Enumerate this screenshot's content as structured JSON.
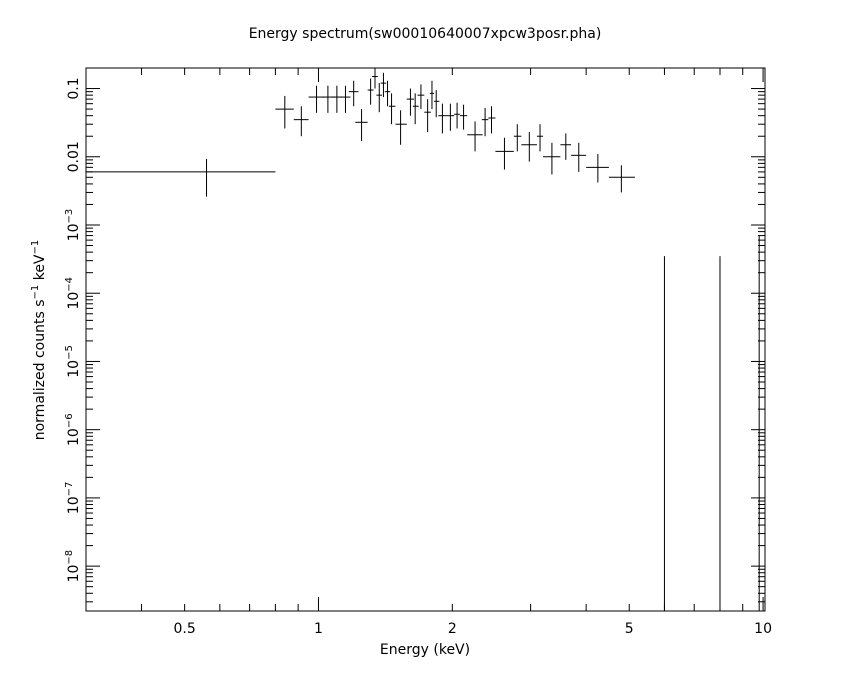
{
  "chart_data": {
    "type": "scatter",
    "title": "Energy spectrum(sw00010640007xpcw3posr.pha)",
    "xlabel": "Energy (keV)",
    "ylabel": {
      "text": "normalized counts s",
      "sup1": "−1",
      "mid": " keV",
      "sup2": "−1"
    },
    "xscale": "log",
    "yscale": "log",
    "xlim": [
      0.3,
      10.1
    ],
    "ylim": [
      2.2e-09,
      0.2
    ],
    "x_ticks": [
      {
        "value": 0.5,
        "label": "0.5"
      },
      {
        "value": 1,
        "label": "1"
      },
      {
        "value": 2,
        "label": "2"
      },
      {
        "value": 5,
        "label": "5"
      },
      {
        "value": 10,
        "label": "10"
      }
    ],
    "y_ticks": [
      {
        "value": 0.1,
        "label": "0.1",
        "exp": ""
      },
      {
        "value": 0.01,
        "label": "0.01",
        "exp": ""
      },
      {
        "value": 0.001,
        "label": "10",
        "exp": "−3"
      },
      {
        "value": 0.0001,
        "label": "10",
        "exp": "−4"
      },
      {
        "value": 1e-05,
        "label": "10",
        "exp": "−5"
      },
      {
        "value": 1e-06,
        "label": "10",
        "exp": "−6"
      },
      {
        "value": 1e-07,
        "label": "10",
        "exp": "−7"
      },
      {
        "value": 1e-08,
        "label": "10",
        "exp": "−8"
      }
    ],
    "series": [
      {
        "style": "crosses",
        "points": [
          {
            "x": 0.56,
            "y": 0.006,
            "xlo": 0.3,
            "xhi": 0.8,
            "ylo": 0.0026,
            "yhi": 0.0093
          },
          {
            "x": 0.84,
            "y": 0.05,
            "xlo": 0.8,
            "xhi": 0.88,
            "ylo": 0.026,
            "yhi": 0.078
          },
          {
            "x": 0.915,
            "y": 0.035,
            "xlo": 0.88,
            "xhi": 0.95,
            "ylo": 0.02,
            "yhi": 0.055
          },
          {
            "x": 0.99,
            "y": 0.075,
            "xlo": 0.95,
            "xhi": 1.03,
            "ylo": 0.044,
            "yhi": 0.11
          },
          {
            "x": 1.05,
            "y": 0.075,
            "xlo": 1.02,
            "xhi": 1.09,
            "ylo": 0.044,
            "yhi": 0.11
          },
          {
            "x": 1.1,
            "y": 0.075,
            "xlo": 1.07,
            "xhi": 1.13,
            "ylo": 0.044,
            "yhi": 0.11
          },
          {
            "x": 1.15,
            "y": 0.075,
            "xlo": 1.12,
            "xhi": 1.18,
            "ylo": 0.044,
            "yhi": 0.11
          },
          {
            "x": 1.2,
            "y": 0.09,
            "xlo": 1.17,
            "xhi": 1.23,
            "ylo": 0.055,
            "yhi": 0.13
          },
          {
            "x": 1.25,
            "y": 0.032,
            "xlo": 1.21,
            "xhi": 1.29,
            "ylo": 0.017,
            "yhi": 0.05
          },
          {
            "x": 1.31,
            "y": 0.095,
            "xlo": 1.29,
            "xhi": 1.33,
            "ylo": 0.058,
            "yhi": 0.14
          },
          {
            "x": 1.34,
            "y": 0.15,
            "xlo": 1.32,
            "xhi": 1.36,
            "ylo": 0.1,
            "yhi": 0.2
          },
          {
            "x": 1.37,
            "y": 0.08,
            "xlo": 1.35,
            "xhi": 1.39,
            "ylo": 0.045,
            "yhi": 0.12
          },
          {
            "x": 1.4,
            "y": 0.12,
            "xlo": 1.38,
            "xhi": 1.42,
            "ylo": 0.075,
            "yhi": 0.17
          },
          {
            "x": 1.43,
            "y": 0.09,
            "xlo": 1.41,
            "xhi": 1.45,
            "ylo": 0.055,
            "yhi": 0.13
          },
          {
            "x": 1.46,
            "y": 0.055,
            "xlo": 1.44,
            "xhi": 1.49,
            "ylo": 0.03,
            "yhi": 0.085
          },
          {
            "x": 1.53,
            "y": 0.03,
            "xlo": 1.49,
            "xhi": 1.58,
            "ylo": 0.015,
            "yhi": 0.048
          },
          {
            "x": 1.61,
            "y": 0.07,
            "xlo": 1.58,
            "xhi": 1.64,
            "ylo": 0.04,
            "yhi": 0.1
          },
          {
            "x": 1.65,
            "y": 0.055,
            "xlo": 1.63,
            "xhi": 1.68,
            "ylo": 0.03,
            "yhi": 0.085
          },
          {
            "x": 1.7,
            "y": 0.08,
            "xlo": 1.67,
            "xhi": 1.73,
            "ylo": 0.05,
            "yhi": 0.115
          },
          {
            "x": 1.76,
            "y": 0.045,
            "xlo": 1.73,
            "xhi": 1.79,
            "ylo": 0.023,
            "yhi": 0.07
          },
          {
            "x": 1.8,
            "y": 0.085,
            "xlo": 1.78,
            "xhi": 1.82,
            "ylo": 0.05,
            "yhi": 0.13
          },
          {
            "x": 1.84,
            "y": 0.065,
            "xlo": 1.82,
            "xhi": 1.87,
            "ylo": 0.038,
            "yhi": 0.095
          },
          {
            "x": 1.9,
            "y": 0.04,
            "xlo": 1.86,
            "xhi": 1.94,
            "ylo": 0.022,
            "yhi": 0.06
          },
          {
            "x": 1.98,
            "y": 0.04,
            "xlo": 1.94,
            "xhi": 2.02,
            "ylo": 0.024,
            "yhi": 0.06
          },
          {
            "x": 2.05,
            "y": 0.042,
            "xlo": 2.02,
            "xhi": 2.08,
            "ylo": 0.026,
            "yhi": 0.062
          },
          {
            "x": 2.12,
            "y": 0.04,
            "xlo": 2.08,
            "xhi": 2.16,
            "ylo": 0.025,
            "yhi": 0.058
          },
          {
            "x": 2.25,
            "y": 0.021,
            "xlo": 2.16,
            "xhi": 2.34,
            "ylo": 0.012,
            "yhi": 0.033
          },
          {
            "x": 2.37,
            "y": 0.035,
            "xlo": 2.33,
            "xhi": 2.41,
            "ylo": 0.02,
            "yhi": 0.052
          },
          {
            "x": 2.45,
            "y": 0.037,
            "xlo": 2.41,
            "xhi": 2.5,
            "ylo": 0.022,
            "yhi": 0.055
          },
          {
            "x": 2.62,
            "y": 0.012,
            "xlo": 2.5,
            "xhi": 2.75,
            "ylo": 0.0065,
            "yhi": 0.019
          },
          {
            "x": 2.8,
            "y": 0.02,
            "xlo": 2.75,
            "xhi": 2.86,
            "ylo": 0.012,
            "yhi": 0.03
          },
          {
            "x": 2.98,
            "y": 0.015,
            "xlo": 2.86,
            "xhi": 3.1,
            "ylo": 0.0085,
            "yhi": 0.023
          },
          {
            "x": 3.15,
            "y": 0.02,
            "xlo": 3.1,
            "xhi": 3.2,
            "ylo": 0.012,
            "yhi": 0.03
          },
          {
            "x": 3.35,
            "y": 0.01,
            "xlo": 3.2,
            "xhi": 3.5,
            "ylo": 0.0055,
            "yhi": 0.016
          },
          {
            "x": 3.6,
            "y": 0.015,
            "xlo": 3.5,
            "xhi": 3.7,
            "ylo": 0.009,
            "yhi": 0.022
          },
          {
            "x": 3.85,
            "y": 0.0105,
            "xlo": 3.7,
            "xhi": 4.0,
            "ylo": 0.006,
            "yhi": 0.016
          },
          {
            "x": 4.25,
            "y": 0.007,
            "xlo": 4.0,
            "xhi": 4.5,
            "ylo": 0.0042,
            "yhi": 0.011
          },
          {
            "x": 4.8,
            "y": 0.005,
            "xlo": 4.5,
            "xhi": 5.15,
            "ylo": 0.003,
            "yhi": 0.0075
          }
        ]
      },
      {
        "style": "upper-bars",
        "points": [
          {
            "x": 6.0,
            "y": 0.00035
          },
          {
            "x": 8.0,
            "y": 0.00035
          },
          {
            "x": 9.8,
            "y": 0.0007
          }
        ]
      }
    ],
    "grid": false,
    "legend": "none"
  }
}
